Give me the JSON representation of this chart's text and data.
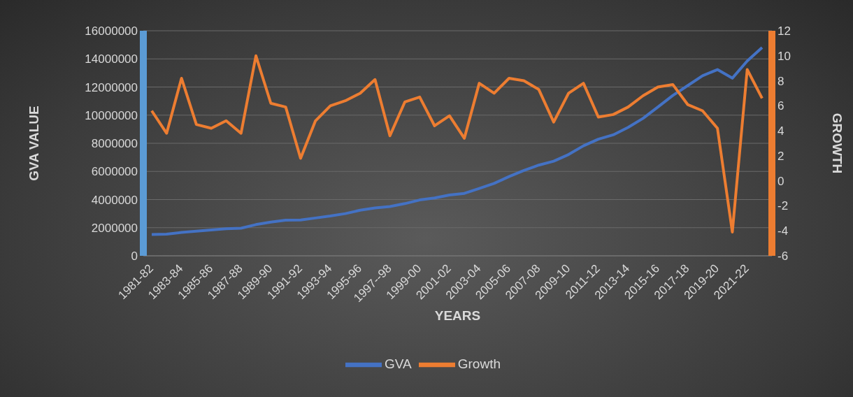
{
  "chart_data": {
    "type": "line",
    "xlabel": "YEARS",
    "ylabel": "GVA VALUE",
    "y2label": "GROWTH",
    "categories": [
      "1981-82",
      null,
      "1983-84",
      null,
      "1985-86",
      null,
      "1987-88",
      null,
      "1989-90",
      null,
      "1991-92",
      null,
      "1993-94",
      null,
      "1995-96",
      null,
      "1997--98",
      null,
      "1999-00",
      null,
      "2001-02",
      null,
      "2003-04",
      null,
      "2005-06",
      null,
      "2007-08",
      null,
      "2009-10",
      null,
      "2011-12",
      null,
      "2013-14",
      null,
      "2015-16",
      null,
      "2017-18",
      null,
      "2019-20",
      null,
      "2021-22",
      null
    ],
    "series": [
      {
        "name": "GVA",
        "color": "#4472c4",
        "values": [
          1520000,
          1540000,
          1660000,
          1750000,
          1840000,
          1920000,
          1960000,
          2220000,
          2400000,
          2530000,
          2550000,
          2690000,
          2830000,
          3000000,
          3240000,
          3400000,
          3500000,
          3710000,
          3970000,
          4110000,
          4320000,
          4440000,
          4790000,
          5150000,
          5630000,
          6070000,
          6450000,
          6730000,
          7200000,
          7820000,
          8290000,
          8600000,
          9130000,
          9770000,
          10580000,
          11400000,
          12100000,
          12800000,
          13240000,
          12630000,
          13850000,
          14810000
        ]
      },
      {
        "name": "Growth",
        "color": "#ed7d31",
        "axis": "y2",
        "values": [
          5.6,
          3.8,
          8.2,
          4.5,
          4.2,
          4.8,
          3.8,
          10,
          6.2,
          5.9,
          1.8,
          4.8,
          6,
          6.4,
          7,
          8.1,
          3.6,
          6.3,
          6.7,
          4.4,
          5.2,
          3.4,
          7.8,
          7,
          8.2,
          8,
          7.3,
          4.7,
          7,
          7.8,
          5.1,
          5.3,
          5.9,
          6.8,
          7.5,
          7.7,
          6.1,
          5.6,
          4.2,
          -4.1,
          8.9,
          6.6
        ]
      }
    ],
    "ylim": [
      0,
      16000000
    ],
    "yticks": [
      0,
      2000000,
      4000000,
      6000000,
      8000000,
      10000000,
      12000000,
      14000000,
      16000000
    ],
    "y2lim": [
      -6,
      12
    ],
    "y2ticks": [
      -6,
      -4,
      -2,
      0,
      2,
      4,
      6,
      8,
      10,
      12
    ],
    "grid": "y",
    "legend": "bottom",
    "marker": "none",
    "line_style": "solid"
  }
}
